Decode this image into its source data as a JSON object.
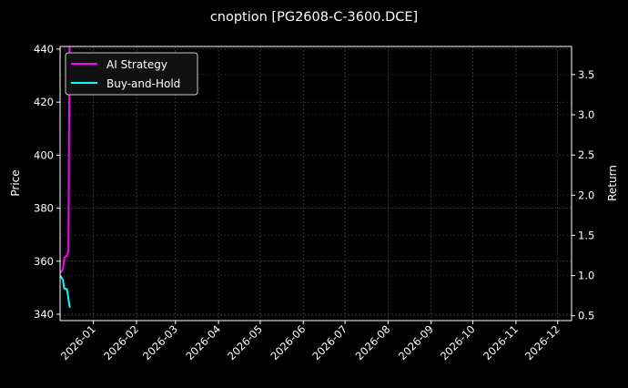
{
  "chart_data": {
    "type": "line",
    "title": "cnoption [PG2608-C-3600.DCE]",
    "ylabel_left": "Price",
    "ylabel_right": "Return",
    "xlabel": "",
    "x_ticks": [
      "2026-01",
      "2026-02",
      "2026-03",
      "2026-04",
      "2026-05",
      "2026-06",
      "2026-07",
      "2026-08",
      "2026-09",
      "2026-10",
      "2026-11",
      "2026-12"
    ],
    "y_left_ticks": [
      340,
      360,
      380,
      400,
      420,
      440
    ],
    "y_right_ticks": [
      0.5,
      1.0,
      1.5,
      2.0,
      2.5,
      3.0,
      3.5
    ],
    "xlim": [
      "2025-12-08",
      "2026-12-11"
    ],
    "ylim_left": [
      337.6,
      441
    ],
    "ylim_right": [
      0.44,
      3.85
    ],
    "grid": true,
    "legend": "top-left",
    "series": [
      {
        "name": "AI Strategy",
        "color": "#ff00ff",
        "axis": "right",
        "x": [
          "2025-12-08",
          "2025-12-10",
          "2025-12-11",
          "2025-12-13",
          "2025-12-14",
          "2025-12-15"
        ],
        "y": [
          1.03,
          1.08,
          1.22,
          1.25,
          1.3,
          4.5
        ]
      },
      {
        "name": "Buy-and-Hold",
        "color": "#00ffff",
        "axis": "right",
        "x": [
          "2025-12-08",
          "2025-12-10",
          "2025-12-11",
          "2025-12-13",
          "2025-12-15"
        ],
        "y": [
          1.0,
          0.95,
          0.84,
          0.83,
          0.6
        ]
      }
    ]
  }
}
